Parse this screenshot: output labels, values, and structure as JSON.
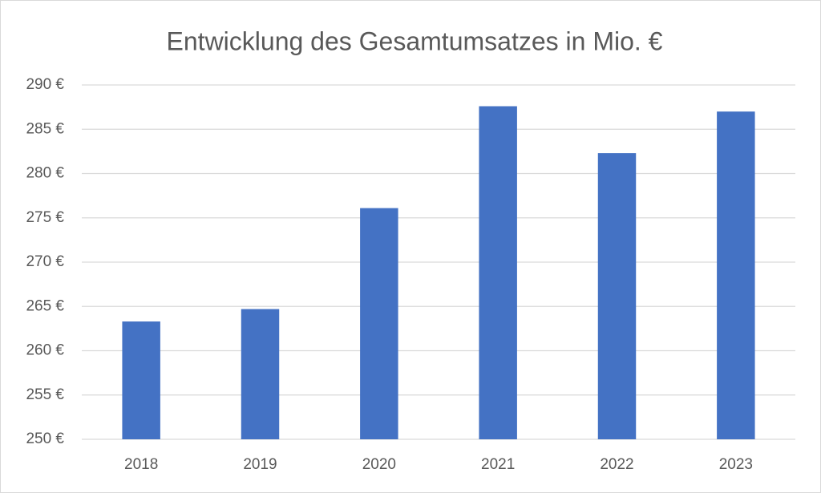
{
  "chart_data": {
    "type": "bar",
    "title": "Entwicklung des Gesamtumsatzes in Mio. €",
    "categories": [
      "2018",
      "2019",
      "2020",
      "2021",
      "2022",
      "2023"
    ],
    "values": [
      263.3,
      264.7,
      276.1,
      287.6,
      282.3,
      287.0
    ],
    "color": "#4472c4",
    "ylim": [
      250,
      290
    ],
    "yticks": [
      {
        "value": 250,
        "label": "250 €"
      },
      {
        "value": 255,
        "label": "255 €"
      },
      {
        "value": 260,
        "label": "260 €"
      },
      {
        "value": 265,
        "label": "265 €"
      },
      {
        "value": 270,
        "label": "270 €"
      },
      {
        "value": 275,
        "label": "275 €"
      },
      {
        "value": 280,
        "label": "280 €"
      },
      {
        "value": 285,
        "label": "285 €"
      },
      {
        "value": 290,
        "label": "290 €"
      }
    ],
    "grid": true
  }
}
